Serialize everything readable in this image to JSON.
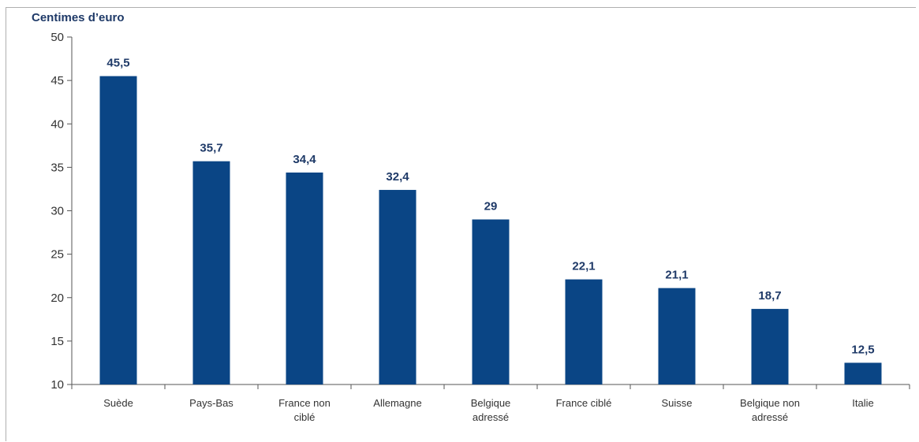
{
  "chart_data": {
    "type": "bar",
    "title": "",
    "ylabel": "Centimes d’euro",
    "xlabel": "",
    "categories": [
      [
        "Suède"
      ],
      [
        "Pays-Bas"
      ],
      [
        "France non",
        "ciblé"
      ],
      [
        "Allemagne"
      ],
      [
        "Belgique",
        "adressé"
      ],
      [
        "France ciblé"
      ],
      [
        "Suisse"
      ],
      [
        "Belgique non",
        "adressé"
      ],
      [
        "Italie"
      ]
    ],
    "values": [
      45.5,
      35.7,
      34.4,
      32.4,
      29,
      22.1,
      21.1,
      18.7,
      12.5
    ],
    "value_labels": [
      "45,5",
      "35,7",
      "34,4",
      "32,4",
      "29",
      "22,1",
      "21,1",
      "18,7",
      "12,5"
    ],
    "ylim": [
      10,
      50
    ],
    "yticks": [
      10,
      15,
      20,
      25,
      30,
      35,
      40,
      45,
      50
    ],
    "grid": false,
    "legend": "none",
    "colors": {
      "bar": "#0a4585",
      "label": "#1f3a68",
      "axis": "#555555"
    }
  }
}
